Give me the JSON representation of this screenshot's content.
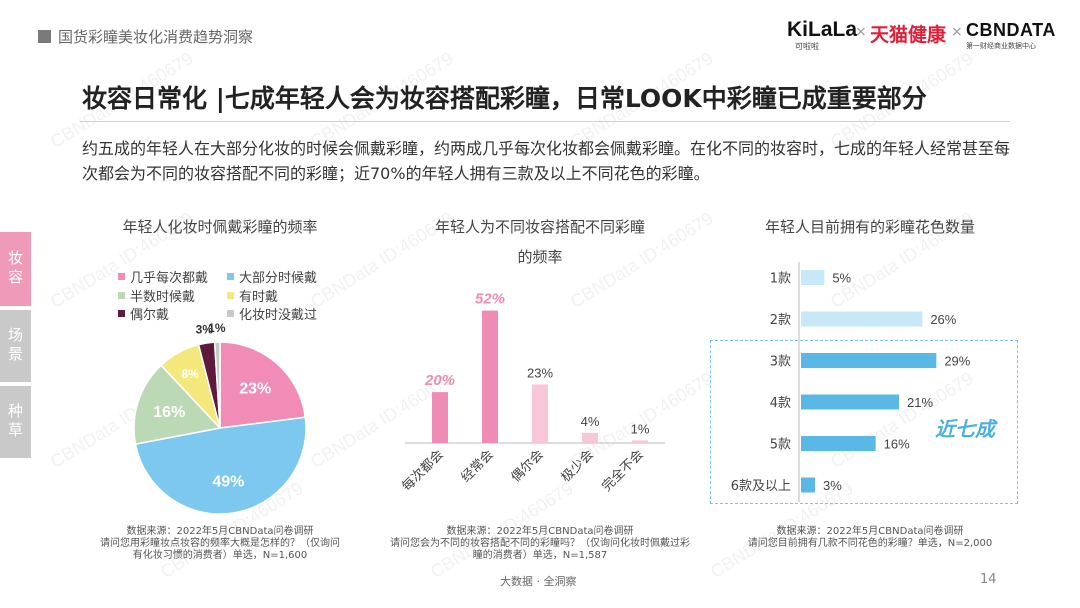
{
  "header": {
    "title": "国货彩瞳美妆化消费趋势洞察",
    "logos": {
      "kilala": "KiLaLa",
      "kilala_sub": "可啦啦",
      "sep": "×",
      "tmall": "天猫健康",
      "cbn": "CBNDATA",
      "cbn_sub": "第一财经商业数据中心"
    }
  },
  "main_title": "妆容日常化 |七成年轻人会为妆容搭配彩瞳，日常LOOK中彩瞳已成重要部分",
  "summary": "约五成的年轻人在大部分化妆的时候会佩戴彩瞳，约两成几乎每次化妆都会佩戴彩瞳。在化不同的妆容时，七成的年轻人经常甚至每次都会为不同的妆容搭配不同的彩瞳；近70%的年轻人拥有三款及以上不同花色的彩瞳。",
  "side_tabs": [
    {
      "label": "妆容",
      "active": true
    },
    {
      "label": "场景",
      "active": false
    },
    {
      "label": "种草",
      "active": false
    }
  ],
  "watermark_text": "CBNData ID:460679",
  "colors": {
    "pink": "#f08cb5",
    "blue": "#7cc8ee",
    "green": "#bcd9b6",
    "yellow": "#f4e87c",
    "darkred": "#5e1a3c",
    "gray": "#c9c9c9",
    "bar_pink_dark": "#ee8cb6",
    "bar_pink_light": "#f7c6d9",
    "bar_blue": "#5ab8e6",
    "bar_blue_light": "#c7e8f7"
  },
  "chart_data": [
    {
      "type": "pie",
      "title": "年轻人化妆时佩戴彩瞳的频率",
      "categories": [
        "几乎每次都戴",
        "大部分时候戴",
        "半数时候戴",
        "有时戴",
        "偶尔戴",
        "化妆时没戴过"
      ],
      "values": [
        23,
        49,
        16,
        8,
        3,
        1
      ],
      "labels": [
        "23%",
        "49%",
        "16%",
        "8%",
        "3%",
        "1%"
      ],
      "legend_placement": "top",
      "source": "数据来源：2022年5月CBNData问卷调研",
      "question": "请问您用彩瞳妆点妆容的频率大概是怎样的？（仅询问有化妆习惯的消费者）单选，N=1,600"
    },
    {
      "type": "bar",
      "title_line1": "年轻人为不同妆容搭配不同彩瞳",
      "title_line2": "的频率",
      "categories": [
        "每次都会",
        "经常会",
        "偶尔会",
        "极少会",
        "完全不会"
      ],
      "values": [
        20,
        52,
        23,
        4,
        1
      ],
      "labels": [
        "20%",
        "52%",
        "23%",
        "4%",
        "1%"
      ],
      "highlighted": [
        true,
        true,
        false,
        false,
        false
      ],
      "ylim": [
        0,
        55
      ],
      "source": "数据来源：2022年5月CBNData问卷调研",
      "question": "请问您会为不同的妆容搭配不同的彩瞳吗？（仅询问化妆时佩戴过彩瞳的消费者）单选，N=1,587"
    },
    {
      "type": "bar",
      "orientation": "horizontal",
      "title": "年轻人目前拥有的彩瞳花色数量",
      "categories": [
        "1款",
        "2款",
        "3款",
        "4款",
        "5款",
        "6款及以上"
      ],
      "values": [
        5,
        26,
        29,
        21,
        16,
        3
      ],
      "labels": [
        "5%",
        "26%",
        "29%",
        "21%",
        "16%",
        "3%"
      ],
      "highlighted": [
        false,
        false,
        true,
        true,
        true,
        true
      ],
      "xlim": [
        0,
        30
      ],
      "highlight_label": "近七成",
      "source": "数据来源：2022年5月CBNData问卷调研",
      "question": "请问您目前拥有几款不同花色的彩瞳？单选，N=2,000"
    }
  ],
  "footer": {
    "text": "大数据 · 全洞察",
    "page_number": "14"
  }
}
